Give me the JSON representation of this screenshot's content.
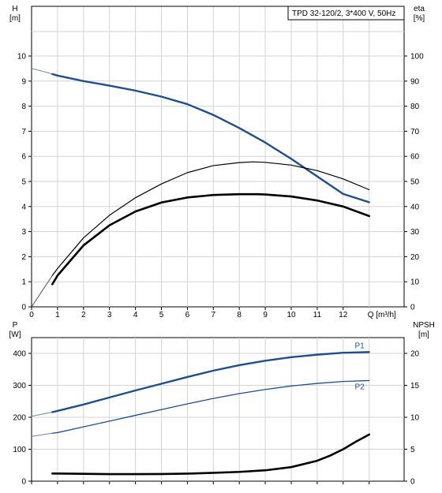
{
  "chart_data": [
    {
      "type": "line",
      "panel": "top",
      "legend_text": "TPD 32-120/2, 3*400 V, 50Hz",
      "left_axis": {
        "label_line1": "H",
        "label_line2": "[m]",
        "range": [
          0,
          10.5
        ],
        "ticks": [
          0,
          1,
          2,
          3,
          4,
          5,
          6,
          7,
          8,
          9,
          10
        ]
      },
      "right_axis": {
        "label_line1": "eta",
        "label_line2": "[%]",
        "range": [
          0,
          105
        ],
        "ticks": [
          0,
          10,
          20,
          30,
          40,
          50,
          60,
          70,
          80,
          90,
          100
        ]
      },
      "x_axis": {
        "label": "Q [m³/h]",
        "range": [
          0,
          13
        ],
        "ticks": [
          0,
          1,
          2,
          3,
          4,
          5,
          6,
          7,
          8,
          9,
          10,
          11,
          12
        ]
      },
      "grid": true,
      "series": [
        {
          "key": "H",
          "axis": "left",
          "color": "#1f4e8c",
          "extrapolated": {
            "x": [
              0,
              0.4,
              0.8
            ],
            "y": [
              9.5,
              9.4,
              9.28
            ]
          },
          "x": [
            0.8,
            1,
            2,
            3,
            4,
            5,
            6,
            7,
            8,
            9,
            10,
            11,
            12,
            13
          ],
          "y": [
            9.28,
            9.22,
            9.0,
            8.82,
            8.62,
            8.38,
            8.08,
            7.65,
            7.13,
            6.55,
            5.9,
            5.2,
            4.5,
            4.17
          ]
        },
        {
          "key": "eta",
          "axis": "right",
          "color": "#000000",
          "x": [
            0.8,
            1,
            2,
            3,
            4,
            5,
            6,
            7,
            8,
            8.7,
            9,
            10,
            11,
            12,
            13
          ],
          "y": [
            9.0,
            12.5,
            24.5,
            32.5,
            38.0,
            41.6,
            43.6,
            44.6,
            44.9,
            44.9,
            44.8,
            44.0,
            42.4,
            40.0,
            36.2
          ]
        },
        {
          "key": "eta-thin",
          "axis": "right",
          "color": "#000000",
          "extrapolated": {
            "x": [
              0,
              0.5,
              0.8
            ],
            "y": [
              0,
              7.8,
              12.5
            ]
          },
          "x": [
            0.8,
            1,
            2,
            3,
            4,
            5,
            6,
            7,
            8,
            8.5,
            9,
            10,
            11,
            12,
            13
          ],
          "y": [
            12.5,
            15.3,
            27.5,
            36.5,
            43.5,
            49.0,
            53.5,
            56.3,
            57.5,
            57.8,
            57.6,
            56.5,
            54.3,
            51.0,
            46.7
          ]
        }
      ]
    },
    {
      "type": "line",
      "panel": "bottom",
      "left_axis": {
        "label_line1": "P",
        "label_line2": "[W]",
        "range": [
          0,
          460
        ],
        "ticks": [
          0,
          100,
          200,
          300,
          400
        ]
      },
      "right_axis": {
        "label_line1": "NPSH",
        "label_line2": "[m]",
        "range": [
          0,
          23
        ],
        "ticks": [
          0,
          5,
          10,
          15,
          20
        ]
      },
      "x_axis": {
        "range": [
          0,
          13
        ]
      },
      "grid": true,
      "series": [
        {
          "name": "P1",
          "axis": "left",
          "color": "#1f4e8c",
          "extrapolated": {
            "x": [
              0,
              0.8
            ],
            "y": [
              203,
              216
            ]
          },
          "x": [
            0.8,
            1,
            2,
            3,
            4,
            5,
            6,
            7,
            8,
            9,
            10,
            11,
            12,
            13
          ],
          "y": [
            216,
            220,
            240,
            262,
            284,
            305,
            326,
            346,
            363,
            377,
            388,
            396,
            402,
            404
          ]
        },
        {
          "name": "P2",
          "axis": "left",
          "color": "#1f4e8c",
          "extrapolated": {
            "x": [
              0,
              0.8
            ],
            "y": [
              140,
              150
            ]
          },
          "x": [
            0.8,
            1,
            2,
            3,
            4,
            5,
            6,
            7,
            8,
            9,
            10,
            11,
            12,
            13
          ],
          "y": [
            150,
            152,
            170,
            188,
            206,
            224,
            242,
            259,
            274,
            287,
            298,
            306,
            312,
            315
          ]
        },
        {
          "key": "NPSH",
          "axis": "right",
          "color": "#000000",
          "x": [
            0.8,
            1,
            2,
            3,
            4,
            5,
            6,
            7,
            8,
            9,
            10,
            11,
            11.5,
            12,
            12.5,
            13
          ],
          "y": [
            1.2,
            1.2,
            1.15,
            1.1,
            1.1,
            1.12,
            1.18,
            1.3,
            1.45,
            1.7,
            2.2,
            3.2,
            4.0,
            5.0,
            6.2,
            7.3
          ]
        }
      ]
    }
  ]
}
